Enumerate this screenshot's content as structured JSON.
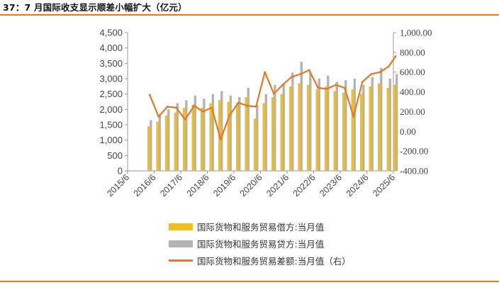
{
  "title": "37：7 月国际收支显示顺差小幅扩大（亿元）",
  "colors": {
    "accent": "#E87722",
    "debit_bar": "#F2BE1B",
    "credit_bar": "#B3B3B3",
    "balance_line": "#E87722"
  },
  "legend": [
    {
      "label": "国际货物和服务贸易借方:当月值",
      "type": "bar",
      "color": "#F2BE1B"
    },
    {
      "label": "国际货物和服务贸易贷方:当月值",
      "type": "bar",
      "color": "#B3B3B3"
    },
    {
      "label": "国际货物和服务贸易差额:当月值（右）",
      "type": "line",
      "color": "#E87722"
    }
  ],
  "chart_data": {
    "type": "bar",
    "x_tick_labels": [
      "2015/6",
      "2016/6",
      "2017/6",
      "2018/6",
      "2019/6",
      "2020/6",
      "2021/6",
      "2022/6",
      "2023/6",
      "2024/6",
      "2025/6"
    ],
    "y_left": {
      "min": 0,
      "max": 4500,
      "ticks": [
        "0",
        "500",
        "1,000",
        "1,500",
        "2,000",
        "2,500",
        "3,000",
        "3,500",
        "4,000",
        "4,500"
      ]
    },
    "y_right": {
      "min": -400,
      "max": 1000,
      "ticks": [
        "-400.00",
        "-200.00",
        "0.00",
        "200.00",
        "400.00",
        "600.00",
        "800.00",
        "1,000.00"
      ]
    },
    "x": [
      "2016/4",
      "2016/8",
      "2016/12",
      "2017/4",
      "2017/8",
      "2017/12",
      "2018/4",
      "2018/8",
      "2018/12",
      "2019/4",
      "2019/8",
      "2019/12",
      "2020/4",
      "2020/8",
      "2020/12",
      "2021/4",
      "2021/8",
      "2021/12",
      "2022/4",
      "2022/8",
      "2022/12",
      "2023/4",
      "2023/8",
      "2023/12",
      "2024/4",
      "2024/8",
      "2024/12",
      "2025/4",
      "2025/7"
    ],
    "series": [
      {
        "name": "国际货物和服务贸易借方:当月值",
        "axis": "left",
        "values": [
          1450,
          1600,
          1800,
          1900,
          2050,
          2150,
          2050,
          2200,
          2300,
          2250,
          2200,
          2400,
          1700,
          2200,
          2400,
          2500,
          2750,
          2850,
          2800,
          2650,
          2750,
          2600,
          2550,
          2650,
          2500,
          2750,
          2850,
          2700,
          2800
        ]
      },
      {
        "name": "国际货物和服务贸易贷方:当月值",
        "axis": "left",
        "values": [
          1650,
          1800,
          2000,
          2200,
          2300,
          2450,
          2350,
          2500,
          2600,
          2450,
          2400,
          2700,
          2150,
          2500,
          2800,
          2850,
          3200,
          3550,
          3200,
          3000,
          3100,
          2900,
          2950,
          3000,
          2800,
          3050,
          3350,
          3000,
          3150
        ]
      },
      {
        "name": "国际货物和服务贸易差额:当月值（右）",
        "axis": "right",
        "values": [
          370,
          150,
          250,
          240,
          120,
          260,
          200,
          240,
          -80,
          160,
          290,
          260,
          250,
          600,
          380,
          470,
          550,
          580,
          620,
          440,
          430,
          470,
          440,
          150,
          500,
          580,
          600,
          660,
          760
        ]
      }
    ]
  }
}
